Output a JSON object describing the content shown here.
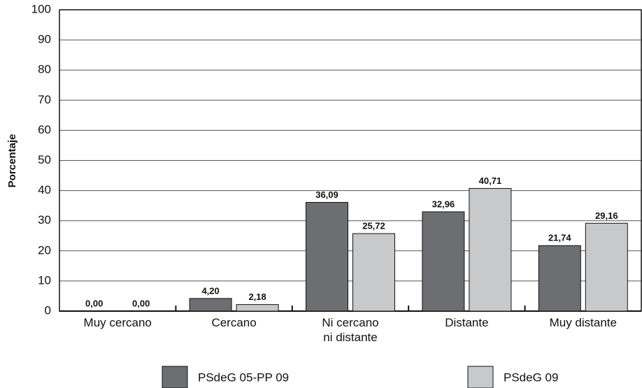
{
  "chart_data": {
    "type": "bar",
    "y_label": "Porcentaje",
    "categories": [
      "Muy cercano",
      "Cercano",
      "Ni cercano\nni distante",
      "Distante",
      "Muy distante"
    ],
    "series": [
      {
        "name": "PSdeG 05-PP 09",
        "color": "#6d6e71",
        "values": [
          0.0,
          4.2,
          36.09,
          32.96,
          21.74
        ],
        "value_labels": [
          "0,00",
          "4,20",
          "36,09",
          "32,96",
          "21,74"
        ]
      },
      {
        "name": "PSdeG 09",
        "color": "#c8c9cb",
        "values": [
          0.0,
          2.18,
          25.72,
          40.71,
          29.16
        ],
        "value_labels": [
          "0,00",
          "2,18",
          "25,72",
          "40,71",
          "29,16"
        ]
      }
    ],
    "ylim": [
      0,
      100
    ],
    "yticks": [
      0,
      10,
      20,
      30,
      40,
      50,
      60,
      70,
      80,
      90,
      100
    ],
    "grid": true,
    "legend": "bottom"
  }
}
